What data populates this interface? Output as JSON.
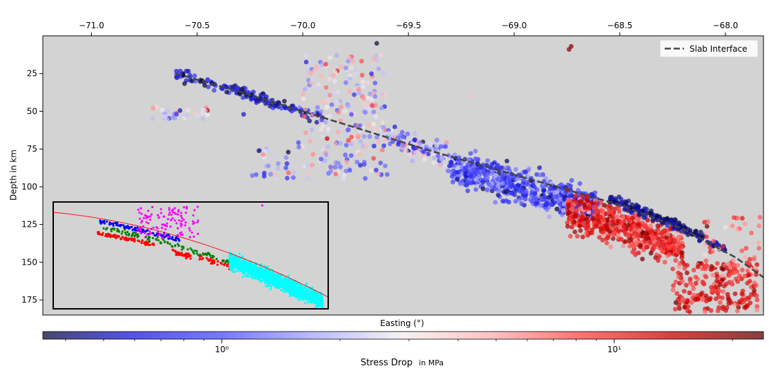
{
  "chart_data": [
    {
      "type": "scatter",
      "title": "",
      "xlabel": "Easting (°)",
      "ylabel": "Depth in km",
      "xlim": [
        -71.23,
        -67.82
      ],
      "ylim": [
        185,
        0
      ],
      "x_axis_position": "top",
      "x_ticks": [
        -71.0,
        -70.5,
        -70.0,
        -69.5,
        -69.0,
        -68.5,
        -68.0
      ],
      "x_tick_labels": [
        "−71.0",
        "−70.5",
        "−70.0",
        "−69.5",
        "−69.0",
        "−68.5",
        "−68.0"
      ],
      "y_ticks": [
        25,
        50,
        75,
        100,
        125,
        150,
        175
      ],
      "y_tick_labels": [
        "25",
        "50",
        "75",
        "100",
        "125",
        "150",
        "175"
      ],
      "background_color": "#d3d3d3",
      "grid": false,
      "legend": {
        "placement": "top-right",
        "entries": [
          "Slab Interface"
        ]
      },
      "series": [
        {
          "name": "Slab Interface",
          "style": "dashed line",
          "color": "#444444",
          "x": [
            -70.6,
            -70.3,
            -70.0,
            -69.7,
            -69.4,
            -69.1,
            -68.8,
            -68.5,
            -68.2,
            -67.95,
            -67.82
          ],
          "y": [
            25,
            37,
            50,
            63,
            76,
            88,
            100,
            112,
            128,
            147,
            160
          ]
        },
        {
          "name": "",
          "style": "scatter points colored by stress drop",
          "clusters": [
            {
              "x_range": [
                -70.6,
                -69.9
              ],
              "y_range": [
                25,
                50
              ],
              "note": "dense band along slab interface, mostly low stress drop"
            },
            {
              "x_range": [
                -70.0,
                -69.6
              ],
              "y_range": [
                12,
                70
              ],
              "note": "shallow cluster, mixed stress drop"
            },
            {
              "x_range": [
                -70.72,
                -70.45
              ],
              "y_range": [
                47,
                56
              ],
              "note": "small shallow western group"
            },
            {
              "x_range": [
                -70.25,
                -69.6
              ],
              "y_range": [
                70,
                95
              ],
              "note": "lower plane scatter"
            },
            {
              "x_range": [
                -69.3,
                -68.6
              ],
              "y_range": [
                85,
                130
              ],
              "note": "dense intermediate-depth cluster, mostly low stress drop"
            },
            {
              "x_range": [
                -68.75,
                -68.2
              ],
              "y_range": [
                120,
                165
              ],
              "note": "dense cluster, mostly high stress drop"
            },
            {
              "x_range": [
                -68.25,
                -67.85
              ],
              "y_range": [
                150,
                183
              ],
              "note": "deep eastern group, high stress drop"
            }
          ]
        }
      ],
      "annotations": [
        {
          "kind": "inset",
          "placement": "lower-left",
          "description": "event cluster classification",
          "clusters": [
            {
              "color": "#0000ff",
              "region": "upper band along curve"
            },
            {
              "color": "#ff00ff",
              "region": "shallow cluster above curve"
            },
            {
              "color": "#008000",
              "region": "band below blue"
            },
            {
              "color": "#ff0000",
              "region": "lower band, left and middle"
            },
            {
              "color": "#00ffff",
              "region": "large dense cluster on the right"
            }
          ],
          "curve_color": "#ff0000"
        }
      ]
    },
    {
      "type": "colorbar",
      "label": "Stress Drop in MPa",
      "label_main": "Stress Drop",
      "label_unit": "in MPa",
      "scale": "log",
      "range": [
        0.35,
        24
      ],
      "ticks": [
        1,
        10
      ],
      "tick_labels": [
        "10⁰",
        "10¹"
      ],
      "colormap": [
        "#0a0a3c",
        "#1a1ae6",
        "#4d4dff",
        "#a5a5ff",
        "#f2eeee",
        "#ffadad",
        "#ff4040",
        "#cc0000",
        "#5c0000"
      ]
    }
  ]
}
